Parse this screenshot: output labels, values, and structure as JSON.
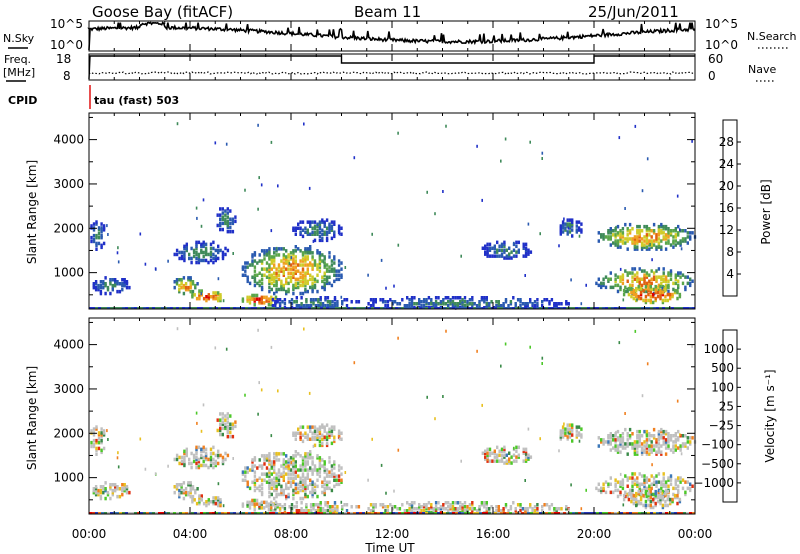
{
  "header": {
    "station": "Goose Bay (fitACF)",
    "beam": "Beam 11",
    "date": "25/Jun/2011"
  },
  "top_panels": {
    "nsky": {
      "label": "N.Sky",
      "ticks": [
        "10^5",
        "10^0"
      ]
    },
    "nsearch": {
      "label": "N.Search",
      "ticks": [
        "10^5",
        "10^0"
      ]
    },
    "freq": {
      "label_line1": "Freq.",
      "label_line2": "[MHz]",
      "ticks": [
        "18",
        "8"
      ]
    },
    "nave": {
      "label": "Nave",
      "ticks": [
        "60",
        "0"
      ]
    },
    "cpid": {
      "label": "CPID",
      "value": "tau (fast) 503"
    }
  },
  "colors": {
    "power": [
      "#2030c8",
      "#2a5ab0",
      "#3f8a5a",
      "#5aa64a",
      "#cfcc2a",
      "#f0a020",
      "#e06010",
      "#dd0000"
    ],
    "velocity": [
      "#2838b8",
      "#3c78b8",
      "#3a8a48",
      "#4cc828",
      "#c0c0c0",
      "#e8c020",
      "#f08020",
      "#e03010",
      "#e80000"
    ],
    "cpid_mark": "#dd0000",
    "ground": "#c0c0c0"
  },
  "chart_data": [
    {
      "type": "heatmap",
      "title": "",
      "xlabel": "",
      "ylabel": "Slant Range [km]",
      "yticks": [
        "1000",
        "2000",
        "3000",
        "4000"
      ],
      "ylim": [
        180,
        4600
      ],
      "xlim_hours": [
        0,
        24
      ],
      "colorbar": {
        "label": "Power [dB]",
        "ticks": [
          "4",
          "8",
          "12",
          "16",
          "20",
          "24",
          "28"
        ]
      },
      "echo_regions": [
        {
          "t": [
            0.0,
            1.6
          ],
          "r": [
            500,
            900
          ],
          "level": "low"
        },
        {
          "t": [
            0.0,
            0.6
          ],
          "r": [
            1500,
            2200
          ],
          "level": "low"
        },
        {
          "t": [
            3.3,
            4.3
          ],
          "r": [
            500,
            900
          ],
          "level": "mid"
        },
        {
          "t": [
            4.0,
            5.3
          ],
          "r": [
            300,
            600
          ],
          "level": "high"
        },
        {
          "t": [
            3.3,
            5.5
          ],
          "r": [
            1200,
            1700
          ],
          "level": "low"
        },
        {
          "t": [
            5.0,
            5.8
          ],
          "r": [
            1850,
            2500
          ],
          "level": "low"
        },
        {
          "t": [
            6.0,
            10.0
          ],
          "r": [
            500,
            1600
          ],
          "level": "mid"
        },
        {
          "t": [
            6.0,
            7.5
          ],
          "r": [
            250,
            500
          ],
          "level": "high"
        },
        {
          "t": [
            8.0,
            10.0
          ],
          "r": [
            1700,
            2200
          ],
          "level": "low"
        },
        {
          "t": [
            7.0,
            10.5
          ],
          "r": [
            180,
            450
          ],
          "level": "low"
        },
        {
          "t": [
            10.5,
            19.0
          ],
          "r": [
            180,
            450
          ],
          "level": "low"
        },
        {
          "t": [
            15.5,
            17.5
          ],
          "r": [
            1300,
            1700
          ],
          "level": "low"
        },
        {
          "t": [
            18.5,
            19.5
          ],
          "r": [
            1800,
            2200
          ],
          "level": "low"
        },
        {
          "t": [
            20.0,
            24.0
          ],
          "r": [
            1500,
            2100
          ],
          "level": "mid"
        },
        {
          "t": [
            20.0,
            24.0
          ],
          "r": [
            500,
            1100
          ],
          "level": "mid"
        },
        {
          "t": [
            21.0,
            23.5
          ],
          "r": [
            300,
            700
          ],
          "level": "high"
        }
      ]
    },
    {
      "type": "heatmap",
      "title": "",
      "xlabel": "Time UT",
      "ylabel": "Slant Range [km]",
      "xticks": [
        "00:00",
        "04:00",
        "08:00",
        "12:00",
        "16:00",
        "20:00",
        "00:00"
      ],
      "yticks": [
        "1000",
        "2000",
        "3000",
        "4000"
      ],
      "ylim": [
        180,
        4600
      ],
      "xlim_hours": [
        0,
        24
      ],
      "colorbar": {
        "label": "Velocity [m s⁻¹]",
        "ticks": [
          "1000",
          "500",
          "100",
          "25",
          "−25",
          "−100",
          "−500",
          "−1000"
        ]
      }
    }
  ],
  "xaxis": {
    "label": "Time UT",
    "ticks": [
      "00:00",
      "04:00",
      "08:00",
      "12:00",
      "16:00",
      "20:00",
      "00:00"
    ]
  }
}
